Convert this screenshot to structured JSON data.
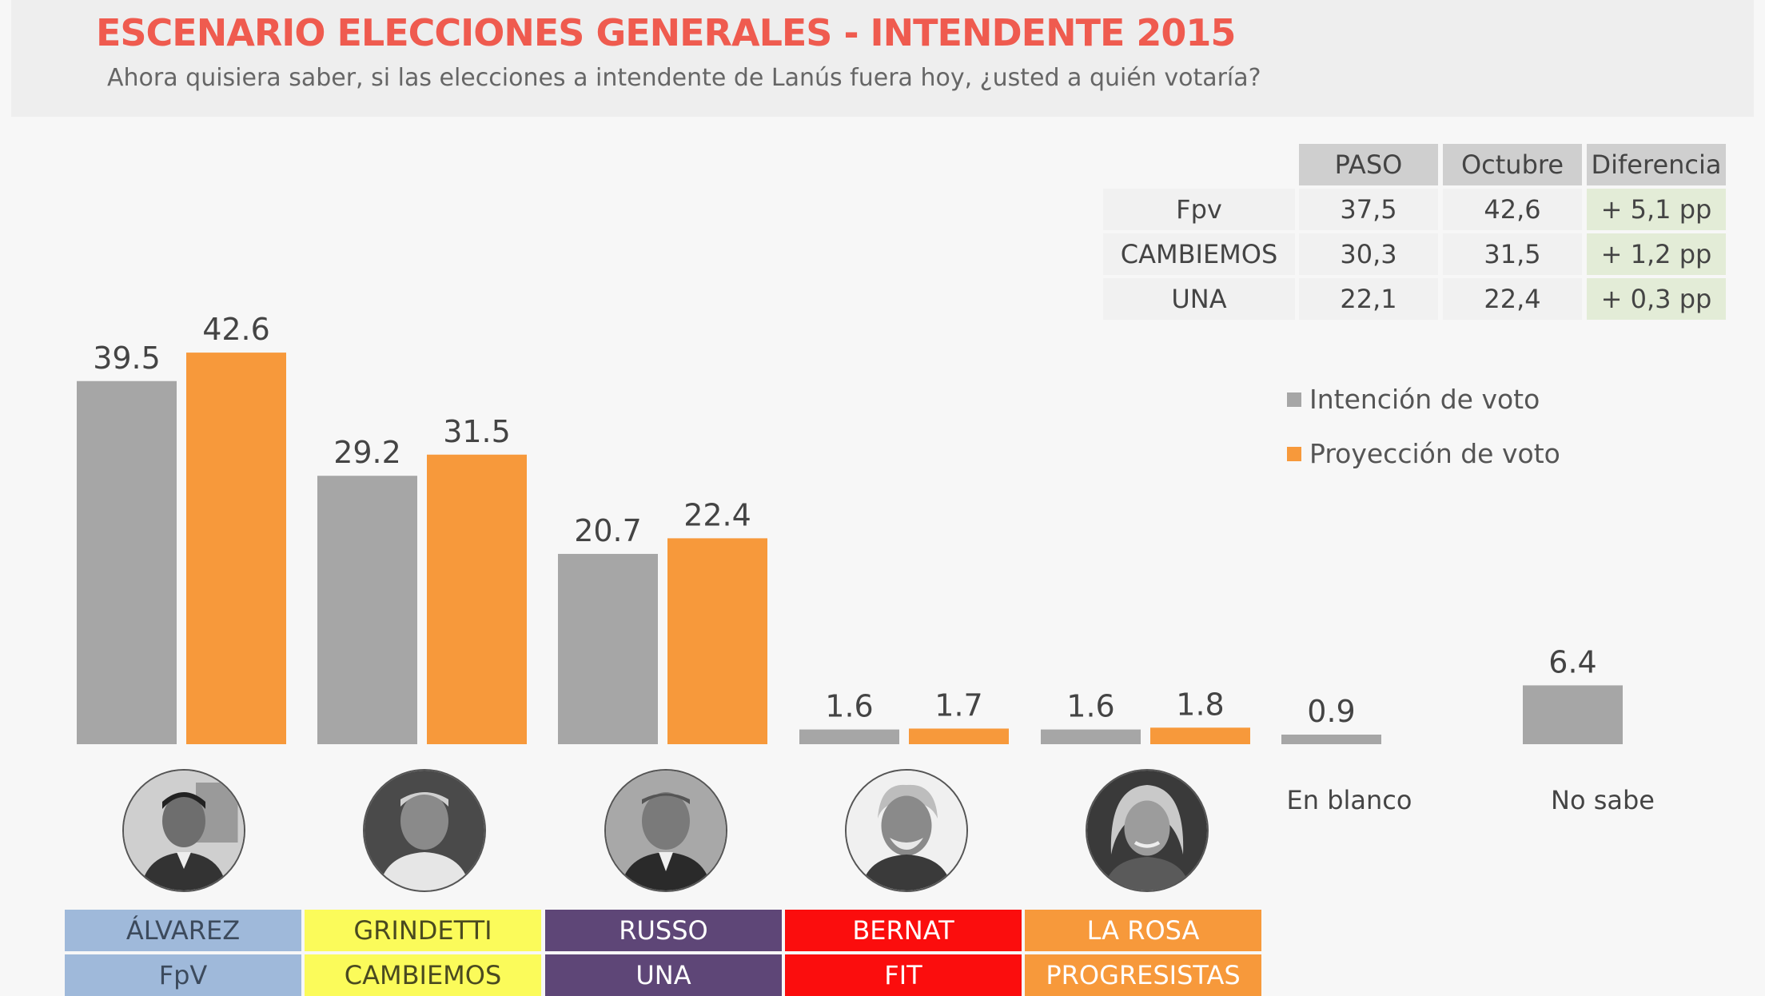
{
  "header": {
    "title": "ESCENARIO ELECCIONES GENERALES - INTENDENTE 2015",
    "subtitle": "Ahora quisiera saber, si las elecciones a intendente de Lanús fuera hoy, ¿usted a quién votaría?"
  },
  "colors": {
    "intencion": "#a6a6a6",
    "proyeccion": "#f7993b",
    "title": "#ef5b4f"
  },
  "chart_data": {
    "type": "bar",
    "title": "ESCENARIO ELECCIONES GENERALES - INTENDENTE 2015",
    "subtitle": "Ahora quisiera saber, si las elecciones a intendente de Lanús fuera hoy, ¿usted a quién votaría?",
    "categories": [
      "ÁLVAREZ",
      "GRINDETTI",
      "RUSSO",
      "BERNAT",
      "LA ROSA",
      "En blanco",
      "No sabe"
    ],
    "series": [
      {
        "name": "Intención de voto",
        "values": [
          39.5,
          29.2,
          20.7,
          1.6,
          1.6,
          0.9,
          6.4
        ]
      },
      {
        "name": "Proyección de voto",
        "values": [
          42.6,
          31.5,
          22.4,
          1.7,
          1.8,
          null,
          null
        ]
      }
    ],
    "value_labels": {
      "intencion": [
        "39.5",
        "29.2",
        "20.7",
        "1.6",
        "1.6",
        "0.9",
        "6.4"
      ],
      "proyeccion": [
        "42.6",
        "31.5",
        "22.4",
        "1.7",
        "1.8",
        "",
        ""
      ]
    },
    "ylim": [
      0,
      45
    ],
    "xlabel": "",
    "ylabel": "",
    "grid": false,
    "legend": "right"
  },
  "legend": [
    {
      "label": "Intención de voto",
      "color": "#a6a6a6"
    },
    {
      "label": "Proyección de voto",
      "color": "#f7993b"
    }
  ],
  "extra_labels": [
    "En blanco",
    "No sabe"
  ],
  "candidates": [
    {
      "name": "ÁLVAREZ",
      "party": "FpV",
      "bg": "#9fb9da",
      "fg": "#3c4a5c"
    },
    {
      "name": "GRINDETTI",
      "party": "CAMBIEMOS",
      "bg": "#fbfb5a",
      "fg": "#4a4a20"
    },
    {
      "name": "RUSSO",
      "party": "UNA",
      "bg": "#5e4677",
      "fg": "#ffffff"
    },
    {
      "name": "BERNAT",
      "party": "FIT",
      "bg": "#fb0d0d",
      "fg": "#ffffff"
    },
    {
      "name": "LA ROSA",
      "party": "PROGRESISTAS",
      "bg": "#f7993b",
      "fg": "#ffffff"
    }
  ],
  "table": {
    "headers": [
      "PASO",
      "Octubre",
      "Diferencia"
    ],
    "rows": [
      {
        "label": "Fpv",
        "paso": "37,5",
        "octubre": "42,6",
        "diferencia": "+ 5,1 pp"
      },
      {
        "label": "CAMBIEMOS",
        "paso": "30,3",
        "octubre": "31,5",
        "diferencia": "+ 1,2 pp"
      },
      {
        "label": "UNA",
        "paso": "22,1",
        "octubre": "22,4",
        "diferencia": "+ 0,3 pp"
      }
    ]
  }
}
